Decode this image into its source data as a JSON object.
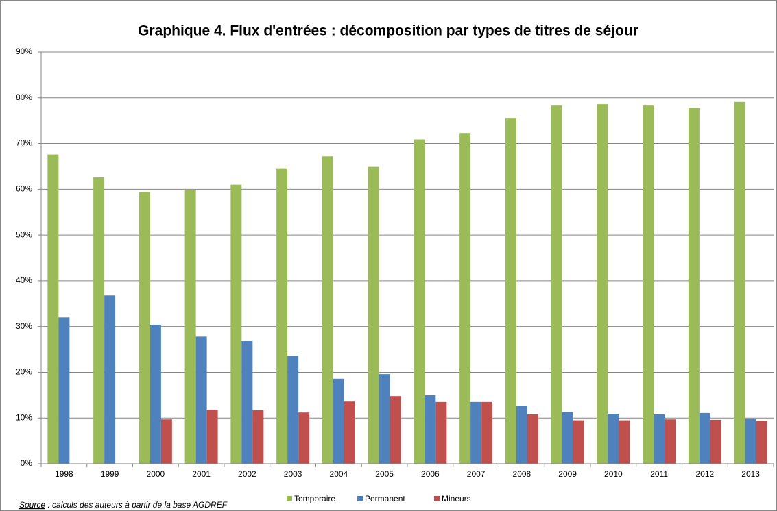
{
  "chart_data": {
    "type": "bar",
    "title": "Graphique 4. Flux d'entrées : décomposition par types de titres de séjour",
    "categories": [
      "1998",
      "1999",
      "2000",
      "2001",
      "2002",
      "2003",
      "2004",
      "2005",
      "2006",
      "2007",
      "2008",
      "2009",
      "2010",
      "2011",
      "2012",
      "2013"
    ],
    "series": [
      {
        "name": "Temporaire",
        "color": "#9bbb59",
        "values": [
          67.6,
          62.6,
          59.4,
          59.9,
          61.0,
          64.6,
          67.2,
          64.9,
          70.9,
          72.3,
          75.6,
          78.3,
          78.6,
          78.3,
          77.8,
          79.1
        ]
      },
      {
        "name": "Permanent",
        "color": "#4f81bd",
        "values": [
          32.0,
          36.8,
          30.4,
          27.8,
          26.8,
          23.6,
          18.6,
          19.6,
          15.0,
          13.5,
          12.7,
          11.3,
          10.9,
          10.8,
          11.1,
          9.9
        ]
      },
      {
        "name": "Mineurs",
        "color": "#c0504d",
        "values": [
          null,
          null,
          9.7,
          11.8,
          11.7,
          11.2,
          13.6,
          14.8,
          13.5,
          13.5,
          10.8,
          9.5,
          9.5,
          9.7,
          9.6,
          9.4
        ]
      }
    ],
    "ylim": [
      0,
      90
    ],
    "yticks": [
      {
        "value": 0,
        "label": "0%"
      },
      {
        "value": 10,
        "label": "10%"
      },
      {
        "value": 20,
        "label": "20%"
      },
      {
        "value": 30,
        "label": "30%"
      },
      {
        "value": 40,
        "label": "40%"
      },
      {
        "value": 50,
        "label": "50%"
      },
      {
        "value": 60,
        "label": "60%"
      },
      {
        "value": 70,
        "label": "70%"
      },
      {
        "value": 80,
        "label": "80%"
      },
      {
        "value": 90,
        "label": "90%"
      }
    ],
    "grid": true,
    "legend": "bottom",
    "source_label": "Source",
    "source_text": " : calculs des auteurs à partir de la base AGDREF"
  }
}
